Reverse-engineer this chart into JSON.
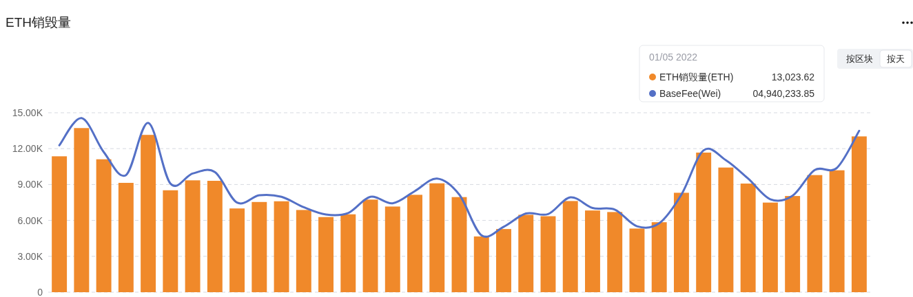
{
  "chart_data": {
    "type": "bar",
    "title": "ETH销毁量",
    "categories": [
      null,
      null,
      null,
      null,
      null,
      null,
      null,
      null,
      null,
      null,
      null,
      null,
      null,
      null,
      null,
      null,
      null,
      null,
      null,
      null,
      null,
      null,
      null,
      null,
      null,
      null,
      null,
      null,
      null,
      null,
      null,
      null,
      null,
      null,
      null,
      null,
      null
    ],
    "series": [
      {
        "name": "ETH销毁量(ETH)",
        "color": "#f0892a",
        "values": [
          11360,
          13720,
          11110,
          9140,
          13150,
          8520,
          9350,
          9310,
          7000,
          7540,
          7600,
          6870,
          6280,
          6510,
          7740,
          7160,
          8140,
          9100,
          7950,
          4660,
          5280,
          6470,
          6350,
          7620,
          6830,
          6700,
          5320,
          5850,
          8310,
          11670,
          10420,
          9080,
          7490,
          8040,
          9790,
          10190,
          13023.62
        ]
      },
      {
        "name": "BaseFee(Wei)",
        "type": "line",
        "color": "#5470c6",
        "values": [
          12280,
          14550,
          11710,
          9790,
          14150,
          9080,
          9920,
          10040,
          7490,
          8100,
          7970,
          7100,
          6490,
          6620,
          7970,
          7430,
          8450,
          9500,
          8160,
          4760,
          5470,
          6580,
          6530,
          7930,
          7040,
          6910,
          5510,
          5760,
          8160,
          11860,
          11040,
          9500,
          7770,
          8060,
          10210,
          10400,
          13490
        ]
      }
    ],
    "ylim": [
      0,
      15000
    ],
    "yticks": [
      0,
      {
        "value": 3000,
        "label": "3.00K"
      },
      {
        "value": 6000,
        "label": "6.00K"
      },
      {
        "value": 9000,
        "label": "9.00K"
      },
      {
        "value": 12000,
        "label": "12.00K"
      },
      {
        "value": 15000,
        "label": "15.00K"
      }
    ],
    "grid": "y",
    "legend": "top right",
    "annotations": [
      "01/05 2022",
      "13,023.62",
      "04,940,233.85",
      "按区块",
      "按天"
    ]
  }
}
